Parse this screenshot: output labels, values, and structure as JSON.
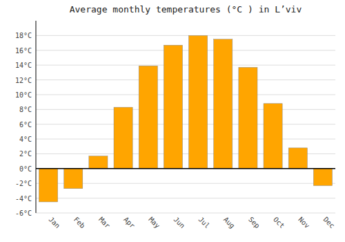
{
  "chart_data": {
    "type": "bar",
    "title": "Average monthly temperatures (°C ) in L’viv",
    "categories": [
      "Jan",
      "Feb",
      "Mar",
      "Apr",
      "May",
      "Jun",
      "Jul",
      "Aug",
      "Sep",
      "Oct",
      "Nov",
      "Dec"
    ],
    "values": [
      -4.5,
      -2.7,
      1.7,
      8.3,
      13.9,
      16.7,
      18.0,
      17.5,
      13.7,
      8.8,
      2.8,
      -2.3
    ],
    "color": "#FFA500",
    "ylim": [
      -6,
      20
    ],
    "yticks": [
      {
        "value": -6,
        "label": "-6°C"
      },
      {
        "value": -4,
        "label": "-4°C"
      },
      {
        "value": -2,
        "label": "-2°C"
      },
      {
        "value": 0,
        "label": "0°C"
      },
      {
        "value": 2,
        "label": "2°C"
      },
      {
        "value": 4,
        "label": "4°C"
      },
      {
        "value": 6,
        "label": "6°C"
      },
      {
        "value": 8,
        "label": "8°C"
      },
      {
        "value": 10,
        "label": "10°C"
      },
      {
        "value": 12,
        "label": "12°C"
      },
      {
        "value": 14,
        "label": "14°C"
      },
      {
        "value": 16,
        "label": "16°C"
      },
      {
        "value": 18,
        "label": "18°C"
      }
    ],
    "grid": true
  }
}
